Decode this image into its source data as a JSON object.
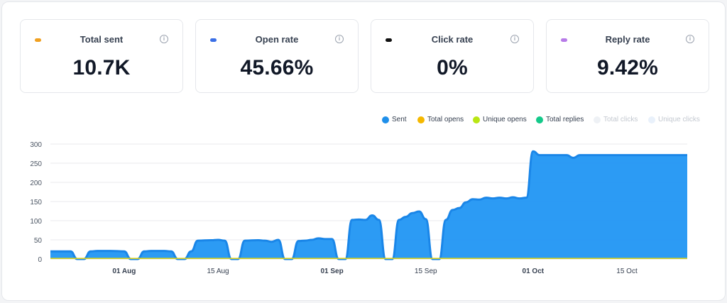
{
  "cards": [
    {
      "title": "Total sent",
      "value": "10.7K",
      "dot": "#f0a020"
    },
    {
      "title": "Open rate",
      "value": "45.66%",
      "dot": "#3b6fe6"
    },
    {
      "title": "Click rate",
      "value": "0%",
      "dot": "#111111"
    },
    {
      "title": "Reply rate",
      "value": "9.42%",
      "dot": "#b77be8"
    }
  ],
  "info_glyph": "i",
  "legend": [
    {
      "label": "Sent",
      "color": "#1f8fea",
      "active": true
    },
    {
      "label": "Total opens",
      "color": "#f5b800",
      "active": true
    },
    {
      "label": "Unique opens",
      "color": "#b9e614",
      "active": true
    },
    {
      "label": "Total replies",
      "color": "#14c98a",
      "active": true
    },
    {
      "label": "Total clicks",
      "color": "#eef1f5",
      "active": false
    },
    {
      "label": "Unique clicks",
      "color": "#e9f1fb",
      "active": false
    }
  ],
  "chart_data": {
    "type": "area",
    "title": "",
    "xlabel": "",
    "ylabel": "",
    "ylim": [
      0,
      300
    ],
    "yticks": [
      0,
      50,
      100,
      150,
      200,
      250,
      300
    ],
    "xlim": [
      "2024-07-21",
      "2024-10-24"
    ],
    "xticks": [
      {
        "date": "2024-08-01",
        "label": "01 Aug",
        "bold": true
      },
      {
        "date": "2024-08-15",
        "label": "15 Aug",
        "bold": false
      },
      {
        "date": "2024-09-01",
        "label": "01 Sep",
        "bold": true
      },
      {
        "date": "2024-09-15",
        "label": "15 Sep",
        "bold": false
      },
      {
        "date": "2024-10-01",
        "label": "01 Oct",
        "bold": true
      },
      {
        "date": "2024-10-15",
        "label": "15 Oct",
        "bold": false
      }
    ],
    "grid": true,
    "legend_position": "top-right",
    "series": [
      {
        "name": "Sent",
        "color": "#2196f3",
        "stroke": "#1a86e8",
        "points": [
          [
            "2024-07-21",
            20
          ],
          [
            "2024-07-23",
            20
          ],
          [
            "2024-07-24",
            20
          ],
          [
            "2024-07-25",
            0
          ],
          [
            "2024-07-26",
            0
          ],
          [
            "2024-07-27",
            20
          ],
          [
            "2024-07-28",
            21
          ],
          [
            "2024-07-30",
            21
          ],
          [
            "2024-08-01",
            20
          ],
          [
            "2024-08-02",
            0
          ],
          [
            "2024-08-03",
            0
          ],
          [
            "2024-08-04",
            20
          ],
          [
            "2024-08-05",
            21
          ],
          [
            "2024-08-07",
            21
          ],
          [
            "2024-08-08",
            20
          ],
          [
            "2024-08-09",
            0
          ],
          [
            "2024-08-10",
            0
          ],
          [
            "2024-08-11",
            20
          ],
          [
            "2024-08-12",
            48
          ],
          [
            "2024-08-14",
            49
          ],
          [
            "2024-08-15",
            50
          ],
          [
            "2024-08-16",
            48
          ],
          [
            "2024-08-17",
            0
          ],
          [
            "2024-08-18",
            0
          ],
          [
            "2024-08-19",
            48
          ],
          [
            "2024-08-21",
            49
          ],
          [
            "2024-08-22",
            48
          ],
          [
            "2024-08-23",
            45
          ],
          [
            "2024-08-24",
            50
          ],
          [
            "2024-08-25",
            0
          ],
          [
            "2024-08-26",
            0
          ],
          [
            "2024-08-27",
            47
          ],
          [
            "2024-08-28",
            48
          ],
          [
            "2024-08-29",
            50
          ],
          [
            "2024-08-30",
            54
          ],
          [
            "2024-08-31",
            52
          ],
          [
            "2024-09-01",
            52
          ],
          [
            "2024-09-02",
            0
          ],
          [
            "2024-09-03",
            0
          ],
          [
            "2024-09-04",
            102
          ],
          [
            "2024-09-05",
            103
          ],
          [
            "2024-09-06",
            102
          ],
          [
            "2024-09-07",
            114
          ],
          [
            "2024-09-08",
            102
          ],
          [
            "2024-09-09",
            0
          ],
          [
            "2024-09-10",
            0
          ],
          [
            "2024-09-11",
            102
          ],
          [
            "2024-09-12",
            110
          ],
          [
            "2024-09-13",
            120
          ],
          [
            "2024-09-14",
            124
          ],
          [
            "2024-09-15",
            104
          ],
          [
            "2024-09-16",
            0
          ],
          [
            "2024-09-17",
            0
          ],
          [
            "2024-09-18",
            102
          ],
          [
            "2024-09-19",
            128
          ],
          [
            "2024-09-20",
            133
          ],
          [
            "2024-09-21",
            148
          ],
          [
            "2024-09-22",
            156
          ],
          [
            "2024-09-23",
            155
          ],
          [
            "2024-09-24",
            160
          ],
          [
            "2024-09-25",
            158
          ],
          [
            "2024-09-26",
            160
          ],
          [
            "2024-09-27",
            158
          ],
          [
            "2024-09-28",
            161
          ],
          [
            "2024-09-29",
            158
          ],
          [
            "2024-09-30",
            160
          ],
          [
            "2024-10-01",
            281
          ],
          [
            "2024-10-02",
            271
          ],
          [
            "2024-10-06",
            271
          ],
          [
            "2024-10-07",
            264
          ],
          [
            "2024-10-08",
            271
          ],
          [
            "2024-10-24",
            271
          ]
        ]
      },
      {
        "name": "Total opens",
        "color": "#d8d020",
        "values_note_free": true,
        "points": [
          [
            "2024-07-21",
            3
          ],
          [
            "2024-10-24",
            3
          ]
        ]
      }
    ]
  }
}
